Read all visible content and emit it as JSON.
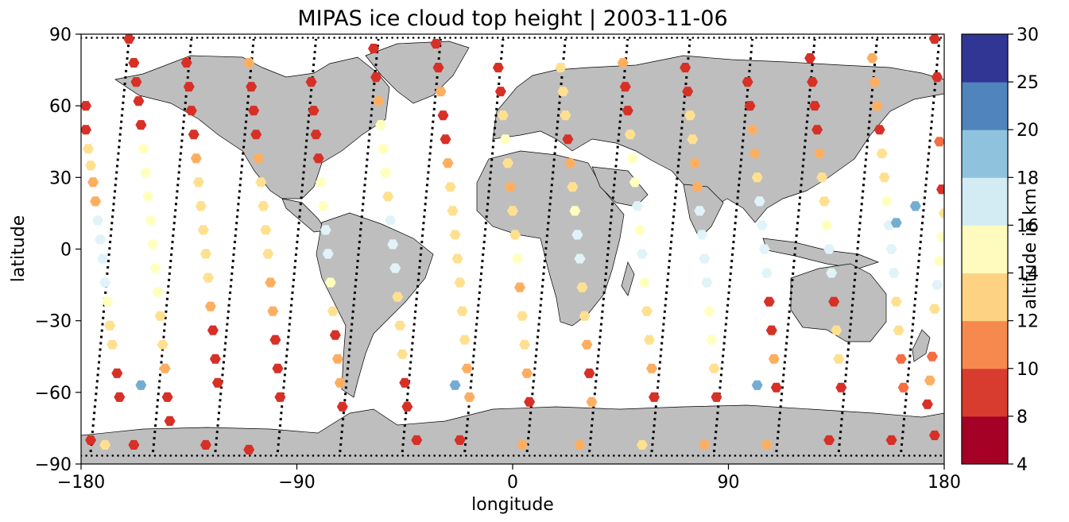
{
  "chart_data": {
    "type": "scatter",
    "title": "MIPAS ice cloud top height | 2003-11-06",
    "xlabel": "longitude",
    "ylabel": "latitude",
    "xlim": [
      -180,
      180
    ],
    "ylim": [
      -90,
      90
    ],
    "xticks": [
      "−180",
      "−90",
      "0",
      "90",
      "180"
    ],
    "xtick_values": [
      -180,
      -90,
      0,
      90,
      180
    ],
    "yticks": [
      "90",
      "60",
      "30",
      "0",
      "−30",
      "−60",
      "−90"
    ],
    "ytick_values": [
      90,
      60,
      30,
      0,
      -30,
      -60,
      -90
    ],
    "grid": false,
    "colorbar": {
      "label": "altitude in km",
      "bounds": [
        4,
        8,
        10,
        12,
        14,
        16,
        18,
        20,
        25,
        30
      ],
      "tick_labels": [
        "4",
        "8",
        "10",
        "12",
        "14",
        "16",
        "18",
        "20",
        "25",
        "30"
      ],
      "colors": [
        "#a50026",
        "#d73027",
        "#f46d43",
        "#fdae61",
        "#fee090",
        "#ffffbf",
        "#e0f3f8",
        "#abd9e9",
        "#74add1",
        "#4575b4",
        "#313695"
      ]
    },
    "tracks": [
      {
        "lon_start": -176,
        "lat_start": -85,
        "lon_end": -160,
        "lat_end": 88
      },
      {
        "lon_start": -150,
        "lat_start": -85,
        "lon_end": -134,
        "lat_end": 88
      },
      {
        "lon_start": -124,
        "lat_start": -85,
        "lon_end": -108,
        "lat_end": 88
      },
      {
        "lon_start": -98,
        "lat_start": -85,
        "lon_end": -82,
        "lat_end": 88
      },
      {
        "lon_start": -72,
        "lat_start": -85,
        "lon_end": -56,
        "lat_end": 88
      },
      {
        "lon_start": -46,
        "lat_start": -85,
        "lon_end": -30,
        "lat_end": 88
      },
      {
        "lon_start": -20,
        "lat_start": -85,
        "lon_end": -4,
        "lat_end": 88
      },
      {
        "lon_start": 6,
        "lat_start": -85,
        "lon_end": 22,
        "lat_end": 88
      },
      {
        "lon_start": 32,
        "lat_start": -85,
        "lon_end": 48,
        "lat_end": 88
      },
      {
        "lon_start": 58,
        "lat_start": -85,
        "lon_end": 74,
        "lat_end": 88
      },
      {
        "lon_start": 84,
        "lat_start": -85,
        "lon_end": 100,
        "lat_end": 88
      },
      {
        "lon_start": 110,
        "lat_start": -85,
        "lon_end": 126,
        "lat_end": 88
      },
      {
        "lon_start": 136,
        "lat_start": -85,
        "lon_end": 152,
        "lat_end": 88
      },
      {
        "lon_start": 162,
        "lat_start": -85,
        "lon_end": 178,
        "lat_end": 88
      }
    ],
    "clouds": [
      [
        -178,
        60,
        6
      ],
      [
        -178,
        50,
        6
      ],
      [
        -177,
        42,
        12
      ],
      [
        -176,
        35,
        12
      ],
      [
        -175,
        28,
        10
      ],
      [
        -174,
        20,
        10
      ],
      [
        -173,
        12,
        16
      ],
      [
        -172,
        4,
        16
      ],
      [
        -171,
        -4,
        16
      ],
      [
        -170,
        -14,
        16
      ],
      [
        -169,
        -22,
        14
      ],
      [
        -168,
        -32,
        12
      ],
      [
        -167,
        -40,
        12
      ],
      [
        -165,
        -52,
        6
      ],
      [
        -164,
        -62,
        6
      ],
      [
        -176,
        -80,
        6
      ],
      [
        -170,
        -82,
        12
      ],
      [
        -160,
        88,
        6
      ],
      [
        -158,
        78,
        6
      ],
      [
        -157,
        70,
        6
      ],
      [
        -156,
        62,
        6
      ],
      [
        -155,
        52,
        6
      ],
      [
        -154,
        42,
        14
      ],
      [
        -153,
        32,
        14
      ],
      [
        -152,
        22,
        14
      ],
      [
        -151,
        12,
        14
      ],
      [
        -150,
        2,
        14
      ],
      [
        -149,
        -8,
        14
      ],
      [
        -148,
        -18,
        14
      ],
      [
        -147,
        -28,
        12
      ],
      [
        -146,
        -40,
        12
      ],
      [
        -145,
        -50,
        10
      ],
      [
        -144,
        -62,
        6
      ],
      [
        -143,
        -72,
        6
      ],
      [
        -158,
        -82,
        6
      ],
      [
        -136,
        78,
        6
      ],
      [
        -135,
        68,
        6
      ],
      [
        -134,
        58,
        6
      ],
      [
        -133,
        48,
        6
      ],
      [
        -132,
        38,
        10
      ],
      [
        -131,
        28,
        12
      ],
      [
        -130,
        18,
        12
      ],
      [
        -129,
        8,
        12
      ],
      [
        -128,
        -2,
        12
      ],
      [
        -127,
        -12,
        12
      ],
      [
        -126,
        -24,
        10
      ],
      [
        -125,
        -34,
        6
      ],
      [
        -124,
        -46,
        6
      ],
      [
        -123,
        -56,
        6
      ],
      [
        -128,
        -82,
        6
      ],
      [
        -110,
        78,
        10
      ],
      [
        -109,
        68,
        6
      ],
      [
        -108,
        58,
        6
      ],
      [
        -107,
        48,
        6
      ],
      [
        -106,
        38,
        10
      ],
      [
        -105,
        28,
        12
      ],
      [
        -104,
        18,
        12
      ],
      [
        -103,
        8,
        12
      ],
      [
        -102,
        -2,
        12
      ],
      [
        -101,
        -14,
        10
      ],
      [
        -100,
        -26,
        10
      ],
      [
        -99,
        -38,
        6
      ],
      [
        -98,
        -50,
        6
      ],
      [
        -97,
        -62,
        6
      ],
      [
        -110,
        -84,
        6
      ],
      [
        -84,
        70,
        6
      ],
      [
        -83,
        58,
        6
      ],
      [
        -82,
        48,
        6
      ],
      [
        -81,
        38,
        6
      ],
      [
        -80,
        28,
        14
      ],
      [
        -79,
        18,
        14
      ],
      [
        -78,
        8,
        16
      ],
      [
        -77,
        -2,
        16
      ],
      [
        -76,
        -14,
        14
      ],
      [
        -75,
        -26,
        12
      ],
      [
        -74,
        -36,
        6
      ],
      [
        -73,
        -46,
        10
      ],
      [
        -72,
        -56,
        10
      ],
      [
        -71,
        -66,
        6
      ],
      [
        -58,
        84,
        6
      ],
      [
        -57,
        72,
        6
      ],
      [
        -56,
        62,
        10
      ],
      [
        -55,
        52,
        14
      ],
      [
        -54,
        42,
        14
      ],
      [
        -53,
        32,
        14
      ],
      [
        -52,
        22,
        12
      ],
      [
        -51,
        12,
        16
      ],
      [
        -50,
        2,
        16
      ],
      [
        -49,
        -8,
        16
      ],
      [
        -48,
        -20,
        12
      ],
      [
        -47,
        -32,
        12
      ],
      [
        -46,
        -44,
        12
      ],
      [
        -45,
        -56,
        6
      ],
      [
        -44,
        -66,
        6
      ],
      [
        -40,
        -80,
        6
      ],
      [
        -32,
        86,
        6
      ],
      [
        -31,
        76,
        6
      ],
      [
        -30,
        66,
        10
      ],
      [
        -29,
        56,
        6
      ],
      [
        -28,
        46,
        6
      ],
      [
        -27,
        36,
        10
      ],
      [
        -26,
        26,
        12
      ],
      [
        -25,
        16,
        12
      ],
      [
        -24,
        6,
        12
      ],
      [
        -23,
        -4,
        12
      ],
      [
        -22,
        -14,
        12
      ],
      [
        -21,
        -26,
        12
      ],
      [
        -20,
        -38,
        12
      ],
      [
        -19,
        -50,
        10
      ],
      [
        -18,
        -62,
        10
      ],
      [
        -22,
        -80,
        6
      ],
      [
        -6,
        76,
        6
      ],
      [
        -5,
        66,
        6
      ],
      [
        -4,
        56,
        12
      ],
      [
        -3,
        46,
        14
      ],
      [
        -2,
        36,
        12
      ],
      [
        -1,
        26,
        10
      ],
      [
        0,
        16,
        12
      ],
      [
        1,
        6,
        12
      ],
      [
        2,
        -4,
        14
      ],
      [
        3,
        -16,
        10
      ],
      [
        4,
        -28,
        12
      ],
      [
        5,
        -40,
        12
      ],
      [
        6,
        -52,
        10
      ],
      [
        7,
        -64,
        6
      ],
      [
        4,
        -82,
        10
      ],
      [
        20,
        76,
        12
      ],
      [
        21,
        66,
        12
      ],
      [
        22,
        56,
        12
      ],
      [
        23,
        46,
        6
      ],
      [
        24,
        36,
        10
      ],
      [
        25,
        26,
        12
      ],
      [
        26,
        16,
        14
      ],
      [
        27,
        6,
        16
      ],
      [
        28,
        -4,
        16
      ],
      [
        29,
        -16,
        12
      ],
      [
        30,
        -28,
        12
      ],
      [
        31,
        -40,
        10
      ],
      [
        32,
        -52,
        6
      ],
      [
        33,
        -64,
        10
      ],
      [
        28,
        -82,
        10
      ],
      [
        46,
        78,
        10
      ],
      [
        47,
        68,
        6
      ],
      [
        48,
        58,
        6
      ],
      [
        49,
        48,
        12
      ],
      [
        50,
        38,
        14
      ],
      [
        51,
        28,
        14
      ],
      [
        52,
        18,
        16
      ],
      [
        53,
        8,
        14
      ],
      [
        54,
        -2,
        16
      ],
      [
        55,
        -14,
        14
      ],
      [
        56,
        -26,
        12
      ],
      [
        57,
        -38,
        12
      ],
      [
        58,
        -50,
        10
      ],
      [
        59,
        -62,
        6
      ],
      [
        54,
        -82,
        12
      ],
      [
        72,
        76,
        6
      ],
      [
        73,
        66,
        6
      ],
      [
        74,
        56,
        12
      ],
      [
        75,
        46,
        12
      ],
      [
        76,
        36,
        10
      ],
      [
        77,
        26,
        10
      ],
      [
        78,
        16,
        16
      ],
      [
        79,
        6,
        16
      ],
      [
        80,
        -4,
        16
      ],
      [
        81,
        -14,
        16
      ],
      [
        82,
        -26,
        14
      ],
      [
        83,
        -38,
        14
      ],
      [
        84,
        -50,
        12
      ],
      [
        85,
        -62,
        6
      ],
      [
        80,
        -82,
        10
      ],
      [
        98,
        70,
        6
      ],
      [
        99,
        60,
        6
      ],
      [
        100,
        50,
        10
      ],
      [
        101,
        40,
        10
      ],
      [
        102,
        30,
        12
      ],
      [
        103,
        20,
        16
      ],
      [
        104,
        10,
        16
      ],
      [
        105,
        0,
        16
      ],
      [
        106,
        -10,
        16
      ],
      [
        107,
        -22,
        6
      ],
      [
        108,
        -34,
        6
      ],
      [
        109,
        -46,
        10
      ],
      [
        110,
        -58,
        6
      ],
      [
        106,
        -82,
        10
      ],
      [
        124,
        80,
        6
      ],
      [
        125,
        70,
        6
      ],
      [
        126,
        60,
        6
      ],
      [
        127,
        50,
        6
      ],
      [
        128,
        40,
        10
      ],
      [
        129,
        30,
        12
      ],
      [
        130,
        20,
        12
      ],
      [
        131,
        10,
        14
      ],
      [
        132,
        0,
        16
      ],
      [
        133,
        -10,
        16
      ],
      [
        134,
        -22,
        6
      ],
      [
        135,
        -34,
        12
      ],
      [
        136,
        -46,
        12
      ],
      [
        137,
        -58,
        6
      ],
      [
        132,
        -80,
        6
      ],
      [
        150,
        80,
        10
      ],
      [
        151,
        70,
        10
      ],
      [
        152,
        60,
        10
      ],
      [
        153,
        50,
        6
      ],
      [
        154,
        40,
        12
      ],
      [
        155,
        30,
        12
      ],
      [
        156,
        20,
        14
      ],
      [
        157,
        10,
        16
      ],
      [
        158,
        0,
        16
      ],
      [
        159,
        -10,
        16
      ],
      [
        160,
        -22,
        12
      ],
      [
        161,
        -34,
        12
      ],
      [
        162,
        -46,
        8
      ],
      [
        163,
        -58,
        8
      ],
      [
        158,
        -80,
        6
      ],
      [
        176,
        88,
        6
      ],
      [
        177,
        72,
        6
      ],
      [
        178,
        45,
        8
      ],
      [
        179,
        25,
        6
      ],
      [
        180,
        15,
        12
      ],
      [
        179,
        5,
        14
      ],
      [
        178,
        -5,
        14
      ],
      [
        177,
        -15,
        16
      ],
      [
        176,
        -25,
        12
      ],
      [
        175,
        -45,
        8
      ],
      [
        174,
        -55,
        10
      ],
      [
        173,
        -65,
        6
      ],
      [
        176,
        -78,
        6
      ],
      [
        168,
        18,
        20
      ],
      [
        160,
        11,
        20
      ],
      [
        -155,
        -57,
        20
      ],
      [
        -24,
        -57,
        20
      ],
      [
        102,
        -57,
        20
      ]
    ]
  }
}
